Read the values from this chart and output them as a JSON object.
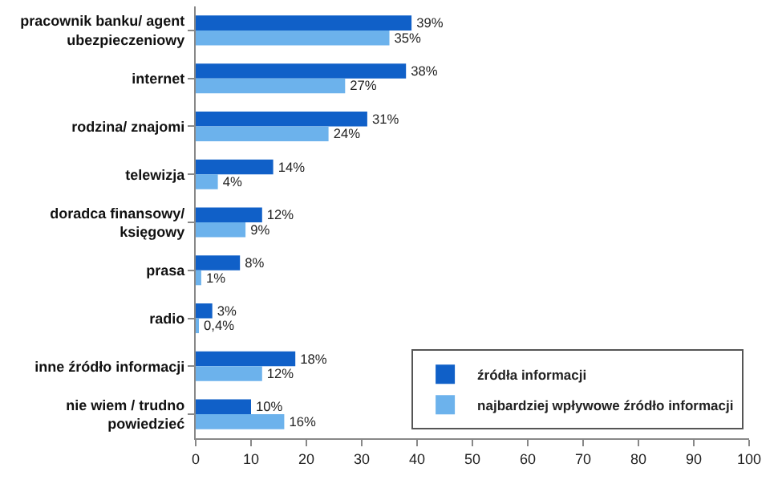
{
  "chart_data": {
    "type": "bar",
    "orientation": "horizontal",
    "categories": [
      "pracownik banku/ agent ubezpieczeniowy",
      "internet",
      "rodzina/ znajomi",
      "telewizja",
      "doradca finansowy/ księgowy",
      "prasa",
      "radio",
      "inne źródło informacji",
      "nie wiem / trudno powiedzieć"
    ],
    "series": [
      {
        "name": "źródła informacji",
        "color": "#1060c8",
        "values": [
          39,
          38,
          31,
          14,
          12,
          8,
          3,
          18,
          10
        ],
        "value_labels": [
          "39%",
          "38%",
          "31%",
          "14%",
          "12%",
          "8%",
          "3%",
          "18%",
          "10%"
        ]
      },
      {
        "name": "najbardziej wpływowe źródło informacji",
        "color": "#6cb2ec",
        "values": [
          35,
          27,
          24,
          4,
          9,
          1,
          0.4,
          12,
          16
        ],
        "value_labels": [
          "35%",
          "27%",
          "24%",
          "4%",
          "9%",
          "1%",
          "0,4%",
          "12%",
          "16%"
        ]
      }
    ],
    "xlim": [
      0,
      100
    ],
    "xticks": [
      0,
      10,
      20,
      30,
      40,
      50,
      60,
      70,
      80,
      90,
      100
    ],
    "grid": false,
    "legend": "bottom right"
  }
}
